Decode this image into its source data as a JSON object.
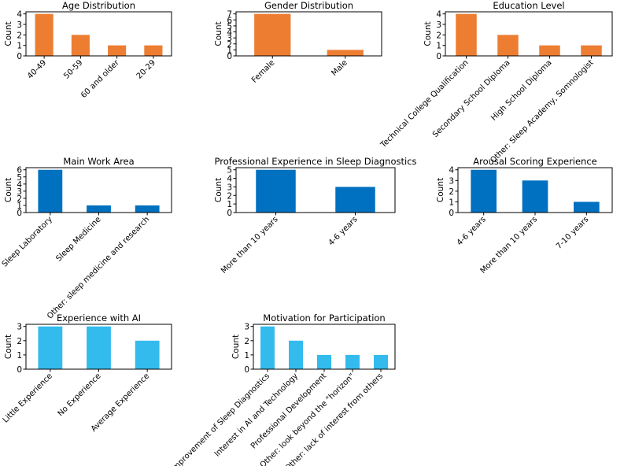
{
  "chart_data": [
    {
      "type": "bar",
      "title": "Age Distribution",
      "ylabel": "Count",
      "categories": [
        "40-49",
        "50-59",
        "60 and older",
        "20-29"
      ],
      "values": [
        4,
        2,
        1,
        1
      ],
      "ylim": [
        0,
        4.2
      ],
      "yticks": [
        0,
        1,
        2,
        3,
        4
      ],
      "color": "#ED7D31"
    },
    {
      "type": "bar",
      "title": "Gender Distribution",
      "ylabel": "Count",
      "categories": [
        "Female",
        "Male"
      ],
      "values": [
        7,
        1
      ],
      "ylim": [
        0,
        7.35
      ],
      "yticks": [
        0,
        1,
        2,
        3,
        4,
        5,
        6,
        7
      ],
      "color": "#ED7D31"
    },
    {
      "type": "bar",
      "title": "Education Level",
      "ylabel": "Count",
      "categories": [
        "Technical College Qualification",
        "Secondary School Diploma",
        "High School Diploma",
        "Other: Sleep Academy, Somnologist"
      ],
      "values": [
        4,
        2,
        1,
        1
      ],
      "ylim": [
        0,
        4.2
      ],
      "yticks": [
        0,
        1,
        2,
        3,
        4
      ],
      "color": "#ED7D31"
    },
    {
      "type": "bar",
      "title": "Main Work Area",
      "ylabel": "Count",
      "categories": [
        "Sleep Laboratory",
        "Sleep Medicine",
        "Other: sleep medicine and research"
      ],
      "values": [
        6,
        1,
        1
      ],
      "ylim": [
        0,
        6.3
      ],
      "yticks": [
        0,
        1,
        2,
        3,
        4,
        5,
        6
      ],
      "color": "#0070C0"
    },
    {
      "type": "bar",
      "title": "Professional Experience in Sleep Diagnostics",
      "ylabel": "Count",
      "categories": [
        "More than 10 years",
        "4-6 years"
      ],
      "values": [
        5,
        3
      ],
      "ylim": [
        0,
        5.25
      ],
      "yticks": [
        0,
        1,
        2,
        3,
        4,
        5
      ],
      "color": "#0070C0"
    },
    {
      "type": "bar",
      "title": "Arousal Scoring Experience",
      "ylabel": "Count",
      "categories": [
        "4-6 years",
        "More than 10 years",
        "7-10 years"
      ],
      "values": [
        4,
        3,
        1
      ],
      "ylim": [
        0,
        4.2
      ],
      "yticks": [
        0,
        1,
        2,
        3,
        4
      ],
      "color": "#0070C0"
    },
    {
      "type": "bar",
      "title": "Experience with AI",
      "ylabel": "Count",
      "categories": [
        "Little Experience",
        "No Experience",
        "Average Experience"
      ],
      "values": [
        3,
        3,
        2
      ],
      "ylim": [
        0,
        3.15
      ],
      "yticks": [
        0,
        1,
        2,
        3
      ],
      "color": "#33BBEE"
    },
    {
      "type": "bar",
      "title": "Motivation for Participation",
      "ylabel": "Count",
      "categories": [
        "Improvement of Sleep Diagnostics",
        "Interest in AI and Technology",
        "Professional Development",
        "Other: look beyond the \"horizon\"",
        "Other: lack of interest from others"
      ],
      "values": [
        3,
        2,
        1,
        1,
        1
      ],
      "ylim": [
        0,
        3.15
      ],
      "yticks": [
        0,
        1,
        2,
        3
      ],
      "color": "#33BBEE"
    }
  ]
}
